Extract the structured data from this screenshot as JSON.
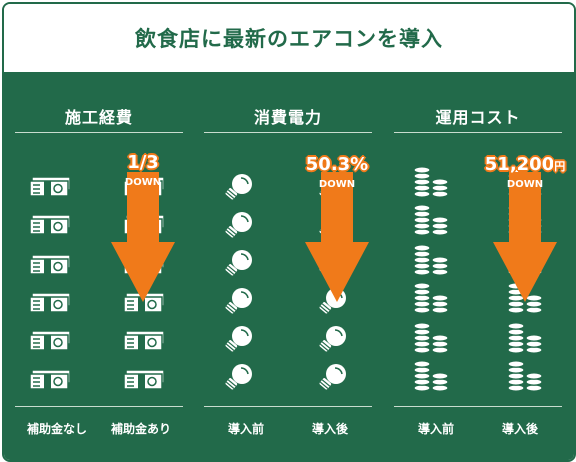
{
  "title": "飲食店に最新のエアコンを導入",
  "colors": {
    "green": "#226a4a",
    "orange": "#f07a1a",
    "white": "#ffffff"
  },
  "columns": [
    {
      "title": "施工経費",
      "icon": "money-bundle-icon",
      "left_label": "補助金なし",
      "right_label": "補助金あり",
      "value": "1/3",
      "unit": "",
      "down": "DOWN"
    },
    {
      "title": "消費電力",
      "icon": "light-bulb-icon",
      "left_label": "導入前",
      "right_label": "導入後",
      "value": "50.3%",
      "unit": "",
      "down": "DOWN"
    },
    {
      "title": "運用コスト",
      "icon": "coin-stack-icon",
      "left_label": "導入前",
      "right_label": "導入後",
      "value": "51,200",
      "unit": "円",
      "down": "DOWN"
    }
  ]
}
